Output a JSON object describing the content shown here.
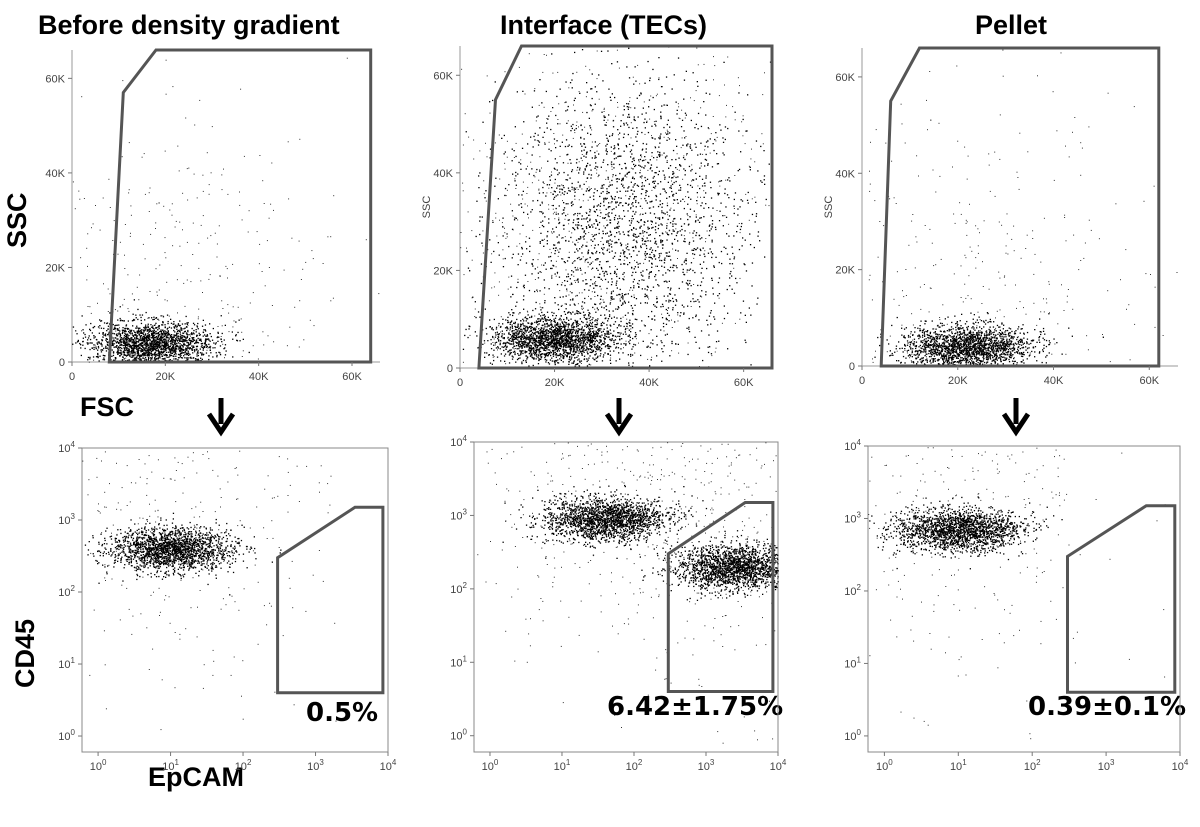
{
  "chart_data": [
    {
      "type": "scatter",
      "title": "Before density gradient",
      "xlabel": "FSC",
      "ylabel": "SSC",
      "xlim": [
        0,
        66000
      ],
      "ylim": [
        0,
        66000
      ],
      "x_ticks": [
        "0",
        "20K",
        "40K",
        "60K"
      ],
      "y_ticks": [
        "0",
        "20K",
        "40K",
        "60K"
      ],
      "gate": [
        [
          8000,
          0
        ],
        [
          11000,
          57000
        ],
        [
          18000,
          66000
        ],
        [
          64000,
          66000
        ],
        [
          64000,
          0
        ]
      ],
      "clusters": [
        {
          "x": 17000,
          "y": 4000
        }
      ]
    },
    {
      "type": "scatter",
      "title": "Interface (TECs)",
      "xlabel": "",
      "ylabel": "SSC",
      "xlim": [
        0,
        66000
      ],
      "ylim": [
        0,
        66000
      ],
      "x_ticks": [
        "0",
        "20K",
        "40K",
        "60K"
      ],
      "y_ticks": [
        "0",
        "20K",
        "40K",
        "60K"
      ],
      "gate": [
        [
          4000,
          0
        ],
        [
          7500,
          55000
        ],
        [
          13000,
          66000
        ],
        [
          66000,
          66000
        ],
        [
          66000,
          0
        ]
      ],
      "clusters": [
        {
          "x": 20000,
          "y": 6000
        },
        {
          "x": 35000,
          "y": 30000
        }
      ]
    },
    {
      "type": "scatter",
      "title": "Pellet",
      "xlabel": "",
      "ylabel": "SSC",
      "xlim": [
        0,
        66000
      ],
      "ylim": [
        0,
        66000
      ],
      "x_ticks": [
        "0",
        "20K",
        "40K",
        "60K"
      ],
      "y_ticks": [
        "0",
        "20K",
        "40K",
        "60K"
      ],
      "gate": [
        [
          4000,
          0
        ],
        [
          6000,
          55000
        ],
        [
          12000,
          66000
        ],
        [
          62000,
          66000
        ],
        [
          62000,
          0
        ]
      ],
      "clusters": [
        {
          "x": 22000,
          "y": 4000
        }
      ]
    },
    {
      "type": "scatter",
      "title": "",
      "xlabel": "EpCAM",
      "ylabel": "CD45",
      "x_scale": "log",
      "y_scale": "log",
      "xlim": [
        0.6,
        10000
      ],
      "ylim": [
        0.6,
        10000
      ],
      "x_ticks": [
        "10^0",
        "10^1",
        "10^2",
        "10^3",
        "10^4"
      ],
      "y_ticks": [
        "10^0",
        "10^1",
        "10^2",
        "10^3",
        "10^4"
      ],
      "gate_label": "0.5%",
      "gate": [
        [
          300,
          4
        ],
        [
          300,
          300
        ],
        [
          3500,
          1500
        ],
        [
          8500,
          1500
        ],
        [
          8500,
          4
        ]
      ],
      "clusters": [
        {
          "x": 10,
          "y": 400
        }
      ]
    },
    {
      "type": "scatter",
      "title": "",
      "xlabel": "",
      "ylabel": "",
      "x_scale": "log",
      "y_scale": "log",
      "xlim": [
        0.6,
        10000
      ],
      "ylim": [
        0.6,
        10000
      ],
      "x_ticks": [
        "10^0",
        "10^1",
        "10^2",
        "10^3",
        "10^4"
      ],
      "y_ticks": [
        "10^0",
        "10^1",
        "10^2",
        "10^3",
        "10^4"
      ],
      "gate_label": "6.42±1.75%",
      "gate": [
        [
          300,
          4
        ],
        [
          300,
          300
        ],
        [
          3500,
          1500
        ],
        [
          8500,
          1500
        ],
        [
          8500,
          4
        ]
      ],
      "clusters": [
        {
          "x": 40,
          "y": 900
        },
        {
          "x": 2500,
          "y": 200
        }
      ]
    },
    {
      "type": "scatter",
      "title": "",
      "xlabel": "",
      "ylabel": "",
      "x_scale": "log",
      "y_scale": "log",
      "xlim": [
        0.6,
        10000
      ],
      "ylim": [
        0.6,
        10000
      ],
      "x_ticks": [
        "10^0",
        "10^1",
        "10^2",
        "10^3",
        "10^4"
      ],
      "y_ticks": [
        "10^0",
        "10^1",
        "10^2",
        "10^3",
        "10^4"
      ],
      "gate_label": "0.39±0.1%",
      "gate": [
        [
          300,
          4
        ],
        [
          300,
          300
        ],
        [
          3500,
          1500
        ],
        [
          8500,
          1500
        ],
        [
          8500,
          4
        ]
      ],
      "clusters": [
        {
          "x": 10,
          "y": 700
        }
      ]
    }
  ]
}
